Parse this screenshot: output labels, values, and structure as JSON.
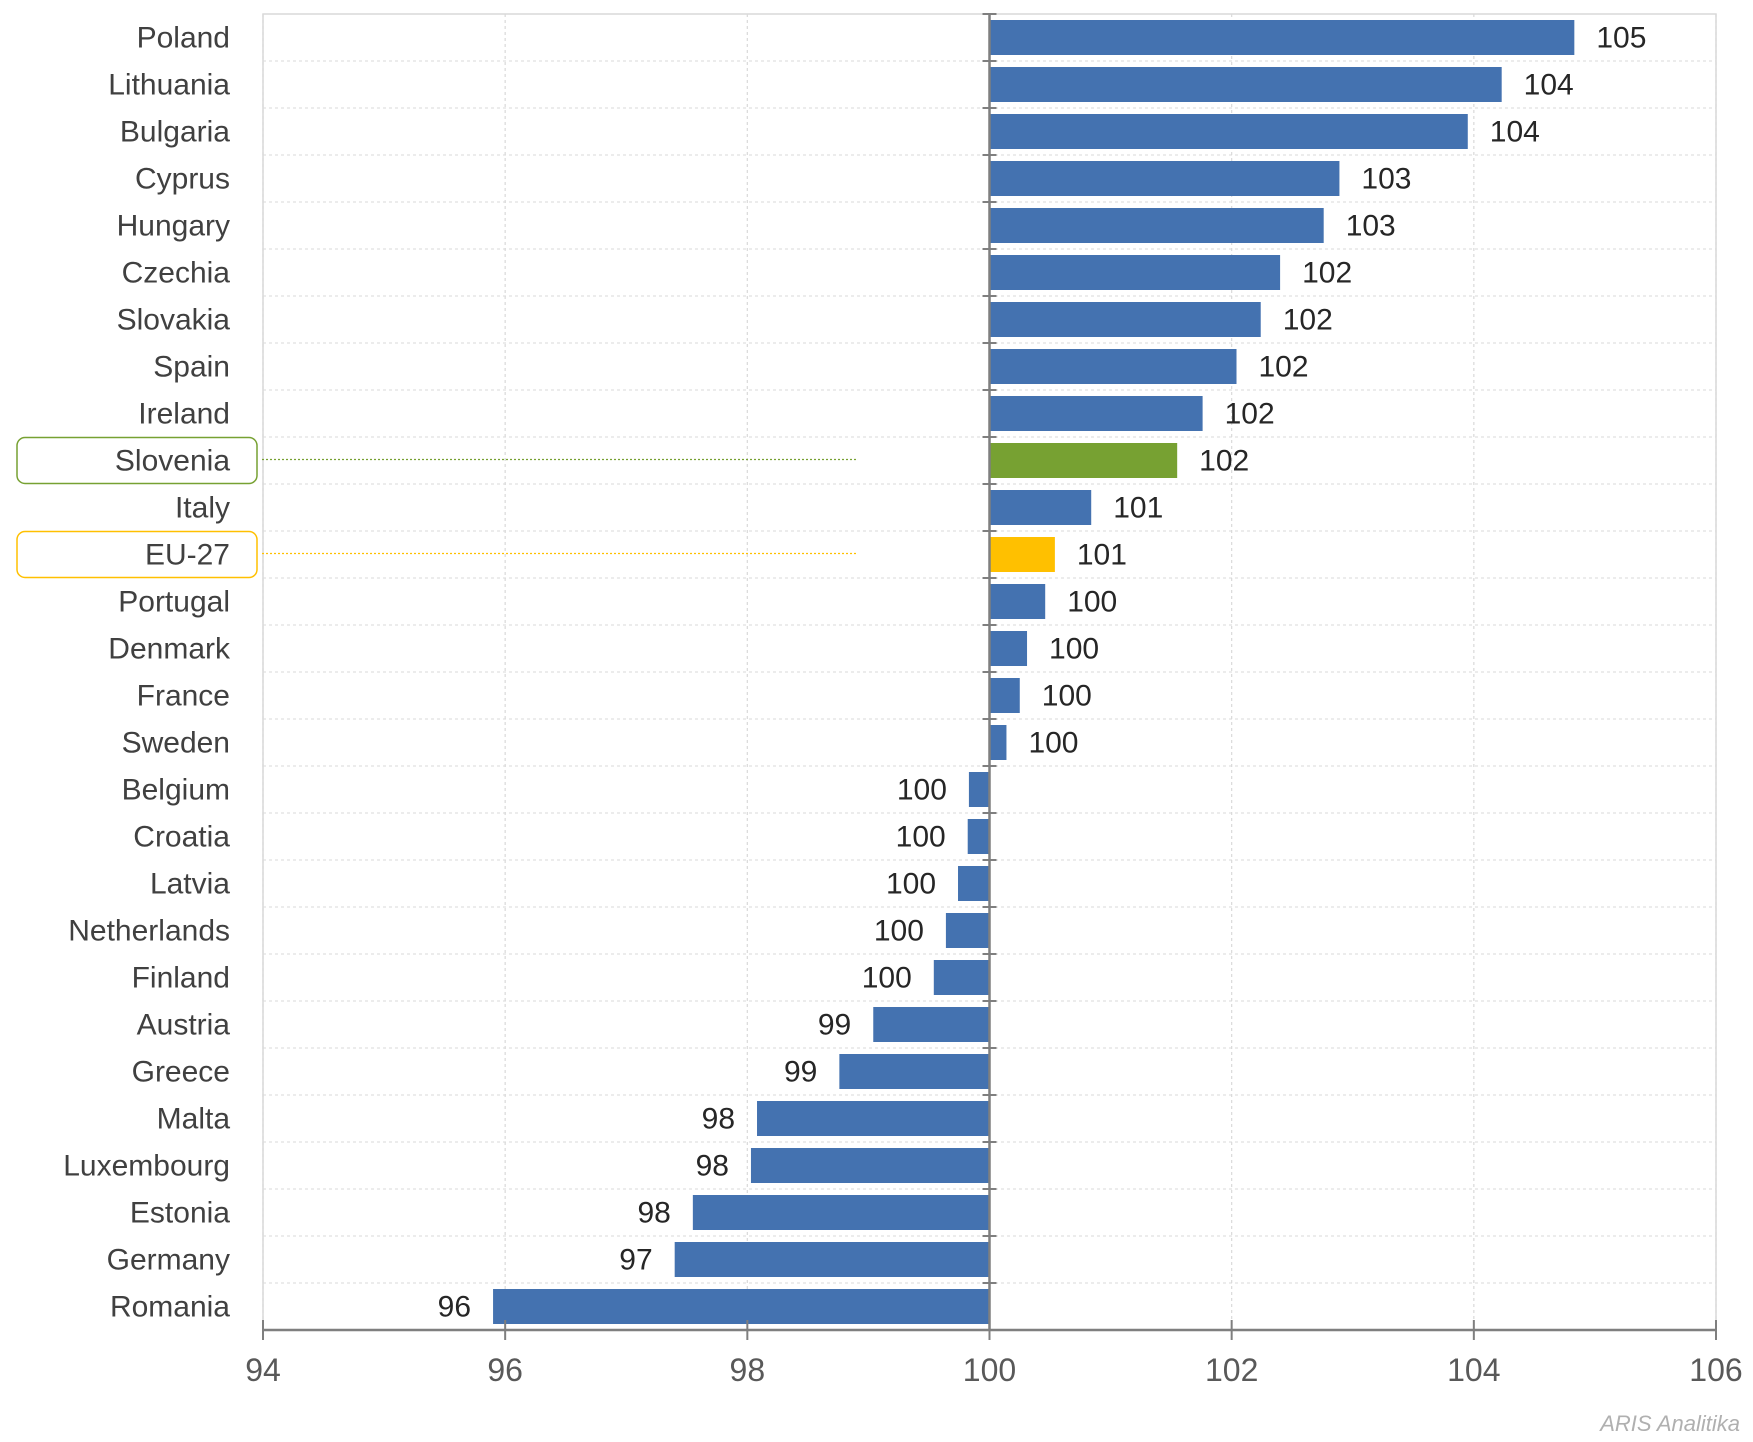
{
  "chart_data": {
    "type": "bar",
    "orientation": "horizontal",
    "baseline": 100,
    "categories": [
      "Poland",
      "Lithuania",
      "Bulgaria",
      "Cyprus",
      "Hungary",
      "Czechia",
      "Slovakia",
      "Spain",
      "Ireland",
      "Slovenia",
      "Italy",
      "EU-27",
      "Portugal",
      "Denmark",
      "France",
      "Sweden",
      "Belgium",
      "Croatia",
      "Latvia",
      "Netherlands",
      "Finland",
      "Austria",
      "Greece",
      "Malta",
      "Luxembourg",
      "Estonia",
      "Germany",
      "Romania"
    ],
    "values": [
      104.83,
      104.23,
      103.95,
      102.89,
      102.76,
      102.4,
      102.24,
      102.04,
      101.76,
      101.55,
      100.84,
      100.54,
      100.46,
      100.31,
      100.25,
      100.14,
      99.83,
      99.82,
      99.74,
      99.64,
      99.54,
      99.04,
      98.76,
      98.08,
      98.03,
      97.55,
      97.4,
      95.9
    ],
    "labels": [
      "105",
      "104",
      "104",
      "103",
      "103",
      "102",
      "102",
      "102",
      "102",
      "102",
      "101",
      "101",
      "100",
      "100",
      "100",
      "100",
      "100",
      "100",
      "100",
      "100",
      "100",
      "99",
      "99",
      "98",
      "98",
      "98",
      "97",
      "96"
    ],
    "highlight": {
      "Slovenia": "#77a132",
      "EU-27": "#ffc000"
    },
    "xlim": [
      94,
      106
    ],
    "xticks": [
      "94",
      "96",
      "98",
      "100",
      "102",
      "104",
      "106"
    ],
    "grid": true,
    "colors": {
      "bar": "#4472b0",
      "grid": "#d9d9d9",
      "axis": "#7f7f7f"
    },
    "source_note": "ARIS Analitika"
  }
}
